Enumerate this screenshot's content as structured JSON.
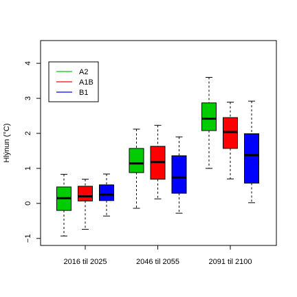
{
  "chart_data": {
    "type": "boxplot",
    "ylabel": "Hlýnun (°C)",
    "ylim": [
      -1.2,
      4.65
    ],
    "yticks": [
      -1,
      0,
      1,
      2,
      3,
      4
    ],
    "grid": false,
    "legend_position": "top-left",
    "categories": [
      "2016 til 2025",
      "2046 til 2055",
      "2091 til 2100"
    ],
    "series": [
      {
        "name": "A2",
        "color": "#00cc00",
        "boxes": [
          {
            "whisker_low": -0.93,
            "q1": -0.2,
            "median": 0.15,
            "q3": 0.47,
            "whisker_high": 0.83
          },
          {
            "whisker_low": -0.14,
            "q1": 0.88,
            "median": 1.14,
            "q3": 1.57,
            "whisker_high": 2.12
          },
          {
            "whisker_low": 1.0,
            "q1": 2.08,
            "median": 2.42,
            "q3": 2.87,
            "whisker_high": 3.6
          }
        ]
      },
      {
        "name": "A1B",
        "color": "#ff0000",
        "boxes": [
          {
            "whisker_low": -0.74,
            "q1": 0.07,
            "median": 0.2,
            "q3": 0.49,
            "whisker_high": 0.69
          },
          {
            "whisker_low": 0.13,
            "q1": 0.69,
            "median": 1.18,
            "q3": 1.63,
            "whisker_high": 2.23
          },
          {
            "whisker_low": 0.7,
            "q1": 1.57,
            "median": 2.04,
            "q3": 2.45,
            "whisker_high": 2.89
          }
        ]
      },
      {
        "name": "B1",
        "color": "#0000ff",
        "boxes": [
          {
            "whisker_low": -0.36,
            "q1": 0.08,
            "median": 0.25,
            "q3": 0.53,
            "whisker_high": 0.84
          },
          {
            "whisker_low": -0.28,
            "q1": 0.29,
            "median": 0.74,
            "q3": 1.36,
            "whisker_high": 1.9
          },
          {
            "whisker_low": 0.02,
            "q1": 0.58,
            "median": 1.38,
            "q3": 1.99,
            "whisker_high": 2.92
          }
        ]
      }
    ]
  }
}
